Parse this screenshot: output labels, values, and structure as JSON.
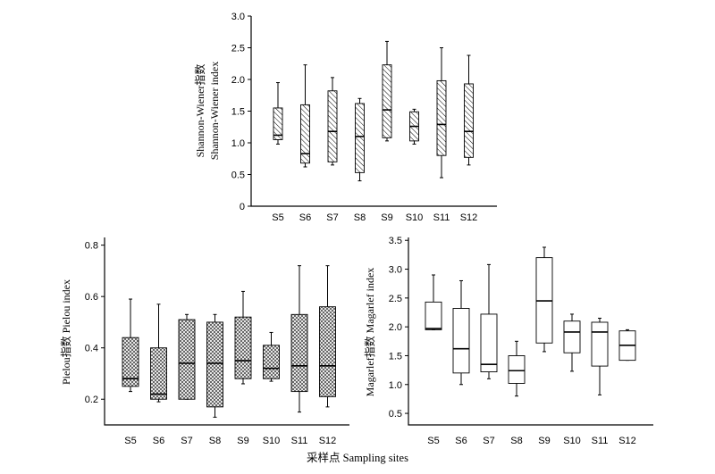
{
  "figure": {
    "xlabel": "采样点 Sampling sites"
  },
  "chart_data": [
    {
      "type": "box",
      "ylabel_lines": [
        "Shannon-Wiener指数",
        "Shannon-Wiener index"
      ],
      "ylim": [
        0,
        3.0
      ],
      "yticks": [
        "0",
        "0.5",
        "1.0",
        "1.5",
        "2.0",
        "2.5",
        "3.0"
      ],
      "ytick_values": [
        0,
        0.5,
        1.0,
        1.5,
        2.0,
        2.5,
        3.0
      ],
      "categories": [
        "S5",
        "S6",
        "S7",
        "S8",
        "S9",
        "S10",
        "S11",
        "S12"
      ],
      "fill": "diagonal-hatch",
      "boxes": [
        {
          "min": 0.98,
          "q1": 1.05,
          "median": 1.12,
          "q3": 1.55,
          "max": 1.95
        },
        {
          "min": 0.62,
          "q1": 0.68,
          "median": 0.83,
          "q3": 1.6,
          "max": 2.23
        },
        {
          "min": 0.65,
          "q1": 0.7,
          "median": 1.18,
          "q3": 1.82,
          "max": 2.03
        },
        {
          "min": 0.4,
          "q1": 0.53,
          "median": 1.1,
          "q3": 1.62,
          "max": 1.7
        },
        {
          "min": 1.03,
          "q1": 1.08,
          "median": 1.52,
          "q3": 2.23,
          "max": 2.6
        },
        {
          "min": 0.98,
          "q1": 1.03,
          "median": 1.26,
          "q3": 1.49,
          "max": 1.53
        },
        {
          "min": 0.45,
          "q1": 0.8,
          "median": 1.29,
          "q3": 1.98,
          "max": 2.5
        },
        {
          "min": 0.65,
          "q1": 0.77,
          "median": 1.18,
          "q3": 1.93,
          "max": 2.38
        }
      ]
    },
    {
      "type": "box",
      "ylabel_lines": [
        "Pielou指数 Pielou index"
      ],
      "ylim": [
        0.1,
        0.83
      ],
      "yticks": [
        "0.2",
        "0.4",
        "0.6",
        "0.8"
      ],
      "ytick_values": [
        0.2,
        0.4,
        0.6,
        0.8
      ],
      "categories": [
        "S5",
        "S6",
        "S7",
        "S8",
        "S9",
        "S10",
        "S11",
        "S12"
      ],
      "fill": "dotted-hatch",
      "boxes": [
        {
          "min": 0.23,
          "q1": 0.25,
          "median": 0.28,
          "q3": 0.44,
          "max": 0.59
        },
        {
          "min": 0.19,
          "q1": 0.2,
          "median": 0.22,
          "q3": 0.4,
          "max": 0.57
        },
        {
          "min": 0.2,
          "q1": 0.2,
          "median": 0.34,
          "q3": 0.51,
          "max": 0.53
        },
        {
          "min": 0.13,
          "q1": 0.17,
          "median": 0.34,
          "q3": 0.5,
          "max": 0.53
        },
        {
          "min": 0.26,
          "q1": 0.28,
          "median": 0.35,
          "q3": 0.52,
          "max": 0.62
        },
        {
          "min": 0.27,
          "q1": 0.28,
          "median": 0.32,
          "q3": 0.41,
          "max": 0.46
        },
        {
          "min": 0.15,
          "q1": 0.23,
          "median": 0.33,
          "q3": 0.53,
          "max": 0.72
        },
        {
          "min": 0.17,
          "q1": 0.21,
          "median": 0.33,
          "q3": 0.56,
          "max": 0.72
        }
      ]
    },
    {
      "type": "box",
      "ylabel_lines": [
        "Magarlef指数 Magarlef index"
      ],
      "ylim": [
        0.3,
        3.55
      ],
      "yticks": [
        "0.5",
        "1.0",
        "1.5",
        "2.0",
        "2.5",
        "3.0",
        "3.5"
      ],
      "ytick_values": [
        0.5,
        1.0,
        1.5,
        2.0,
        2.5,
        3.0,
        3.5
      ],
      "categories": [
        "S5",
        "S6",
        "S7",
        "S8",
        "S9",
        "S10",
        "S11",
        "S12"
      ],
      "fill": "none",
      "boxes": [
        {
          "min": 1.95,
          "q1": 1.95,
          "median": 1.97,
          "q3": 2.43,
          "max": 2.9
        },
        {
          "min": 1.0,
          "q1": 1.2,
          "median": 1.62,
          "q3": 2.32,
          "max": 2.8
        },
        {
          "min": 1.1,
          "q1": 1.22,
          "median": 1.35,
          "q3": 2.22,
          "max": 3.08
        },
        {
          "min": 0.8,
          "q1": 1.02,
          "median": 1.24,
          "q3": 1.5,
          "max": 1.75
        },
        {
          "min": 1.57,
          "q1": 1.72,
          "median": 2.45,
          "q3": 3.2,
          "max": 3.38
        },
        {
          "min": 1.23,
          "q1": 1.55,
          "median": 1.91,
          "q3": 2.1,
          "max": 2.22
        },
        {
          "min": 0.82,
          "q1": 1.32,
          "median": 1.91,
          "q3": 2.08,
          "max": 2.15
        },
        {
          "min": 1.42,
          "q1": 1.42,
          "median": 1.68,
          "q3": 1.93,
          "max": 1.95
        }
      ]
    }
  ]
}
